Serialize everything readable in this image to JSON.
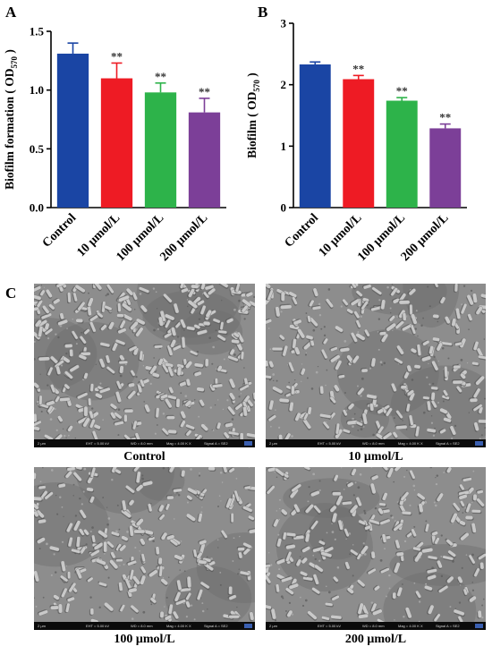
{
  "panels": {
    "a": {
      "letter": "A"
    },
    "b": {
      "letter": "B"
    },
    "c": {
      "letter": "C"
    }
  },
  "chart_data": [
    {
      "panel": "A",
      "type": "bar",
      "ylabel_main": "Biofilm formation ( OD",
      "ylabel_sub": "570",
      "ylabel_end": " )",
      "ylim": [
        0,
        1.5
      ],
      "yticks": [
        0.0,
        0.5,
        1.0,
        1.5
      ],
      "ytick_labels": [
        "0.0",
        "0.5",
        "1.0",
        "1.5"
      ],
      "categories": [
        "Control",
        "10 μmol/L",
        "100 μmol/L",
        "200 μmol/L"
      ],
      "values": [
        1.31,
        1.1,
        0.98,
        0.81
      ],
      "errors": [
        0.09,
        0.13,
        0.08,
        0.12
      ],
      "annotations": [
        "",
        "**",
        "**",
        "**"
      ],
      "colors": [
        "#1a45a4",
        "#ee1b24",
        "#2db34a",
        "#7c3f98"
      ]
    },
    {
      "panel": "B",
      "type": "bar",
      "ylabel_main": "Biofilm ( OD",
      "ylabel_sub": "570",
      "ylabel_end": " )",
      "ylim": [
        0,
        3
      ],
      "yticks": [
        0,
        1,
        2,
        3
      ],
      "ytick_labels": [
        "0",
        "1",
        "2",
        "3"
      ],
      "categories": [
        "Control",
        "10 μmol/L",
        "100 μmol/L",
        "200 μmol/L"
      ],
      "values": [
        2.33,
        2.09,
        1.74,
        1.29
      ],
      "errors": [
        0.04,
        0.06,
        0.05,
        0.07
      ],
      "annotations": [
        "",
        "**",
        "**",
        "**"
      ],
      "colors": [
        "#1a45a4",
        "#ee1b24",
        "#2db34a",
        "#7c3f98"
      ]
    }
  ],
  "sem_images": [
    {
      "caption": "Control",
      "scale": "2 μm",
      "eht": "EHT = 5.00 kV",
      "wd": "WD = 8.0 mm",
      "mag": "Mag = 4.00 K X",
      "signal": "Signal A = SE2"
    },
    {
      "caption": "10 μmol/L",
      "scale": "2 μm",
      "eht": "EHT = 5.00 kV",
      "wd": "WD = 8.0 mm",
      "mag": "Mag = 4.00 K X",
      "signal": "Signal A = SE2"
    },
    {
      "caption": "100 μmol/L",
      "scale": "2 μm",
      "eht": "EHT = 5.00 kV",
      "wd": "WD = 8.0 mm",
      "mag": "Mag = 4.00 K X",
      "signal": "Signal A = SE2"
    },
    {
      "caption": "200 μmol/L",
      "scale": "2 μm",
      "eht": "EHT = 5.00 kV",
      "wd": "WD = 8.0 mm",
      "mag": "Mag = 4.00 K X",
      "signal": "Signal A = SE2"
    }
  ]
}
